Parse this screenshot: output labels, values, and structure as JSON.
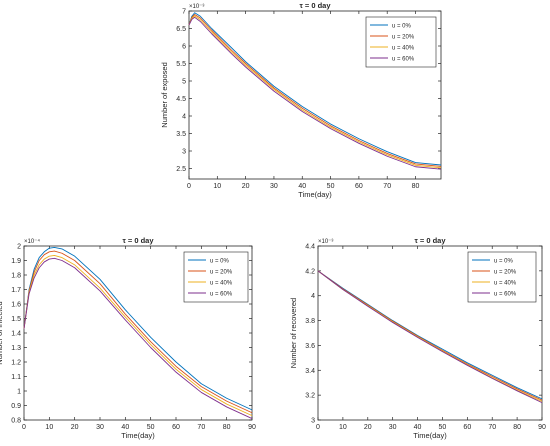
{
  "series_colors": [
    "#0072BD",
    "#D95319",
    "#EDB120",
    "#7E2F8E"
  ],
  "chart_data": [
    {
      "type": "line",
      "title": "τ = 0 day",
      "xlabel": "Time(day)",
      "ylabel": "Number of exposed",
      "exponent": "×10⁻³",
      "xlim": [
        0,
        89
      ],
      "ylim": [
        2.2,
        7.0
      ],
      "xticks": [
        0,
        10,
        20,
        30,
        40,
        50,
        60,
        70,
        80
      ],
      "yticks": [
        2.5,
        3,
        3.5,
        4,
        4.5,
        5,
        5.5,
        6,
        6.5,
        7
      ],
      "legend_position": "top-right",
      "grid": false,
      "x": [
        0,
        1,
        2,
        4,
        8,
        15,
        20,
        30,
        40,
        50,
        60,
        70,
        80,
        89
      ],
      "series": [
        {
          "name": "u = 0%",
          "values": [
            6.6,
            6.85,
            6.95,
            6.85,
            6.5,
            5.95,
            5.55,
            4.85,
            4.27,
            3.77,
            3.35,
            2.98,
            2.67,
            2.6
          ]
        },
        {
          "name": "u = 20%",
          "values": [
            6.6,
            6.82,
            6.9,
            6.8,
            6.45,
            5.88,
            5.5,
            4.8,
            4.22,
            3.72,
            3.3,
            2.93,
            2.63,
            2.56
          ]
        },
        {
          "name": "u = 40%",
          "values": [
            6.6,
            6.79,
            6.86,
            6.75,
            6.4,
            5.83,
            5.45,
            4.76,
            4.17,
            3.68,
            3.26,
            2.89,
            2.59,
            2.52
          ]
        },
        {
          "name": "u = 60%",
          "values": [
            6.6,
            6.76,
            6.82,
            6.7,
            6.35,
            5.78,
            5.4,
            4.71,
            4.13,
            3.64,
            3.22,
            2.85,
            2.55,
            2.48
          ]
        }
      ]
    },
    {
      "type": "line",
      "title": "τ = 0 day",
      "xlabel": "Time(day)",
      "ylabel": "Number of infected",
      "exponent": "×10⁻⁴",
      "xlim": [
        0,
        90
      ],
      "ylim": [
        0.8,
        2.0
      ],
      "xticks": [
        0,
        10,
        20,
        30,
        40,
        50,
        60,
        70,
        80,
        90
      ],
      "yticks": [
        0.8,
        0.9,
        1,
        1.1,
        1.2,
        1.3,
        1.4,
        1.5,
        1.6,
        1.7,
        1.8,
        1.9,
        2
      ],
      "legend_position": "top-right",
      "grid": false,
      "x": [
        0,
        2,
        4,
        6,
        8,
        10,
        12,
        15,
        20,
        30,
        40,
        50,
        60,
        70,
        80,
        90
      ],
      "series": [
        {
          "name": "u = 0%",
          "values": [
            1.43,
            1.7,
            1.84,
            1.92,
            1.96,
            1.985,
            1.99,
            1.98,
            1.93,
            1.77,
            1.56,
            1.37,
            1.2,
            1.05,
            0.95,
            0.87
          ]
        },
        {
          "name": "u = 20%",
          "values": [
            1.43,
            1.69,
            1.82,
            1.9,
            1.94,
            1.96,
            1.965,
            1.95,
            1.9,
            1.74,
            1.53,
            1.34,
            1.17,
            1.03,
            0.93,
            0.85
          ]
        },
        {
          "name": "u = 40%",
          "values": [
            1.43,
            1.68,
            1.8,
            1.87,
            1.91,
            1.93,
            1.935,
            1.92,
            1.87,
            1.71,
            1.51,
            1.32,
            1.15,
            1.01,
            0.91,
            0.83
          ]
        },
        {
          "name": "u = 60%",
          "values": [
            1.43,
            1.67,
            1.78,
            1.85,
            1.89,
            1.91,
            1.915,
            1.9,
            1.85,
            1.69,
            1.49,
            1.3,
            1.13,
            0.99,
            0.89,
            0.81
          ]
        }
      ]
    },
    {
      "type": "line",
      "title": "τ = 0 day",
      "xlabel": "Time(day)",
      "ylabel": "Number of recovered",
      "exponent": "×10⁻³",
      "xlim": [
        0,
        90
      ],
      "ylim": [
        3.0,
        4.4
      ],
      "xticks": [
        0,
        10,
        20,
        30,
        40,
        50,
        60,
        70,
        80,
        90
      ],
      "yticks": [
        3,
        3.2,
        3.4,
        3.6,
        3.8,
        4,
        4.2,
        4.4
      ],
      "legend_position": "top-right",
      "grid": false,
      "x": [
        0,
        10,
        20,
        30,
        40,
        50,
        60,
        70,
        80,
        90
      ],
      "series": [
        {
          "name": "u = 0%",
          "values": [
            4.2,
            4.06,
            3.93,
            3.8,
            3.68,
            3.57,
            3.46,
            3.36,
            3.26,
            3.17
          ]
        },
        {
          "name": "u = 20%",
          "values": [
            4.2,
            4.055,
            3.925,
            3.795,
            3.675,
            3.56,
            3.45,
            3.35,
            3.25,
            3.16
          ]
        },
        {
          "name": "u = 40%",
          "values": [
            4.2,
            4.05,
            3.92,
            3.79,
            3.67,
            3.555,
            3.445,
            3.34,
            3.24,
            3.15
          ]
        },
        {
          "name": "u = 60%",
          "values": [
            4.2,
            4.05,
            3.915,
            3.785,
            3.665,
            3.55,
            3.44,
            3.335,
            3.235,
            3.14
          ]
        }
      ]
    }
  ]
}
